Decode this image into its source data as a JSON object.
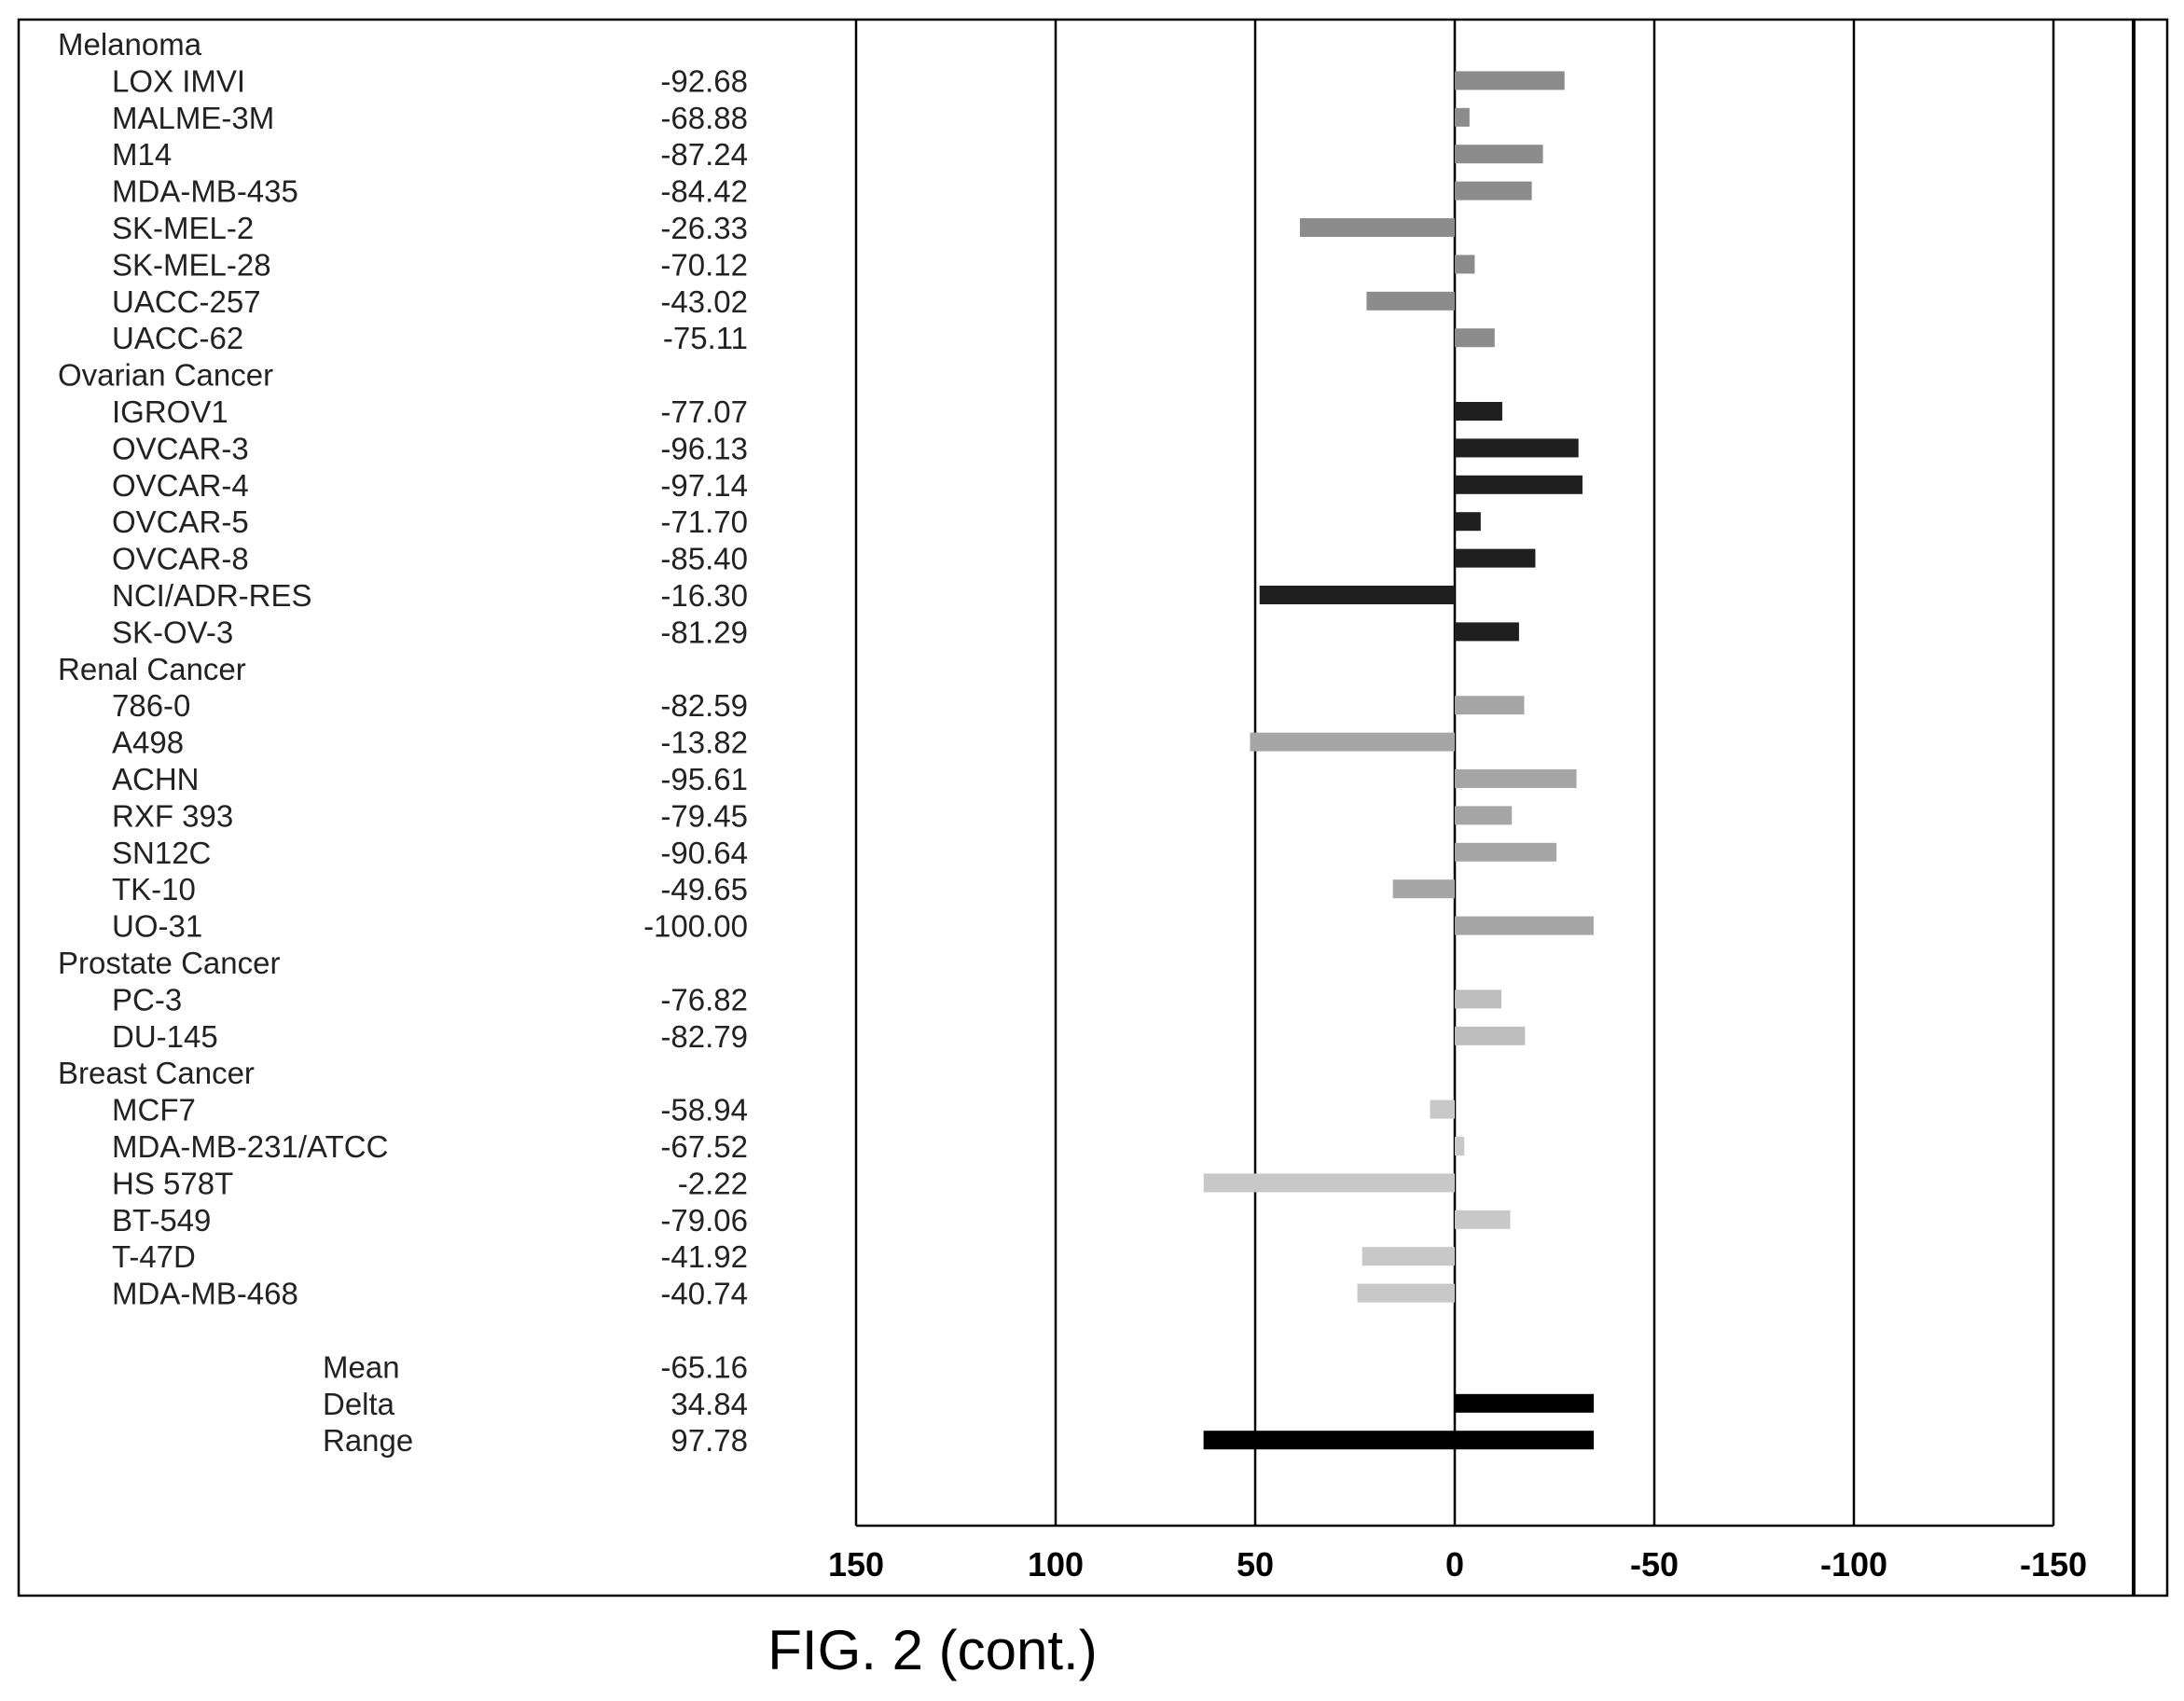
{
  "caption": "FIG. 2 (cont.)",
  "chart_data": {
    "type": "bar",
    "orientation": "horizontal",
    "x_axis": {
      "reversed": true,
      "range": [
        150,
        -150
      ],
      "ticks": [
        "150",
        "100",
        "50",
        "0",
        "-50",
        "-100",
        "-150"
      ],
      "grid": true
    },
    "groups": [
      {
        "name": "Melanoma",
        "color": "#8c8c8c",
        "rows": [
          {
            "label": "LOX IMVI",
            "value": "-92.68",
            "bar": -27.5
          },
          {
            "label": "MALME-3M",
            "value": "-68.88",
            "bar": -3.7
          },
          {
            "label": "M14",
            "value": "-87.24",
            "bar": -22.1
          },
          {
            "label": "MDA-MB-435",
            "value": "-84.42",
            "bar": -19.3
          },
          {
            "label": "SK-MEL-2",
            "value": "-26.33",
            "bar": 38.8
          },
          {
            "label": "SK-MEL-28",
            "value": "-70.12",
            "bar": -5.0
          },
          {
            "label": "UACC-257",
            "value": "-43.02",
            "bar": 22.1
          },
          {
            "label": "UACC-62",
            "value": "-75.11",
            "bar": -10.0
          }
        ]
      },
      {
        "name": "Ovarian Cancer",
        "color": "#1f1f1f",
        "rows": [
          {
            "label": "IGROV1",
            "value": "-77.07",
            "bar": -11.9
          },
          {
            "label": "OVCAR-3",
            "value": "-96.13",
            "bar": -31.0
          },
          {
            "label": "OVCAR-4",
            "value": "-97.14",
            "bar": -32.0
          },
          {
            "label": "OVCAR-5",
            "value": "-71.70",
            "bar": -6.5
          },
          {
            "label": "OVCAR-8",
            "value": "-85.40",
            "bar": -20.2
          },
          {
            "label": "NCI/ADR-RES",
            "value": "-16.30",
            "bar": 48.9
          },
          {
            "label": "SK-OV-3",
            "value": "-81.29",
            "bar": -16.1
          }
        ]
      },
      {
        "name": "Renal Cancer",
        "color": "#a6a6a6",
        "rows": [
          {
            "label": "786-0",
            "value": "-82.59",
            "bar": -17.4
          },
          {
            "label": "A498",
            "value": "-13.82",
            "bar": 51.3
          },
          {
            "label": "ACHN",
            "value": "-95.61",
            "bar": -30.5
          },
          {
            "label": "RXF 393",
            "value": "-79.45",
            "bar": -14.3
          },
          {
            "label": "SN12C",
            "value": "-90.64",
            "bar": -25.5
          },
          {
            "label": "TK-10",
            "value": "-49.65",
            "bar": 15.5
          },
          {
            "label": "UO-31",
            "value": "-100.00",
            "bar": -34.8
          }
        ]
      },
      {
        "name": "Prostate Cancer",
        "color": "#bdbdbd",
        "rows": [
          {
            "label": "PC-3",
            "value": "-76.82",
            "bar": -11.7
          },
          {
            "label": "DU-145",
            "value": "-82.79",
            "bar": -17.6
          }
        ]
      },
      {
        "name": "Breast Cancer",
        "color": "#c8c8c8",
        "rows": [
          {
            "label": "MCF7",
            "value": "-58.94",
            "bar": 6.2
          },
          {
            "label": "MDA-MB-231/ATCC",
            "value": "-67.52",
            "bar": -2.4
          },
          {
            "label": "HS 578T",
            "value": "-2.22",
            "bar": 62.9
          },
          {
            "label": "BT-549",
            "value": "-79.06",
            "bar": -13.9
          },
          {
            "label": "T-47D",
            "value": "-41.92",
            "bar": 23.2
          },
          {
            "label": "MDA-MB-468",
            "value": "-40.74",
            "bar": 24.4
          }
        ]
      }
    ],
    "summary": {
      "color": "#000000",
      "rows": [
        {
          "label": "Mean",
          "value": "-65.16"
        },
        {
          "label": "Delta",
          "value": "34.84",
          "bar_from": 0,
          "bar_to": -34.84
        },
        {
          "label": "Range",
          "value": "97.78",
          "bar_from": 62.94,
          "bar_to": -34.84
        }
      ]
    }
  }
}
